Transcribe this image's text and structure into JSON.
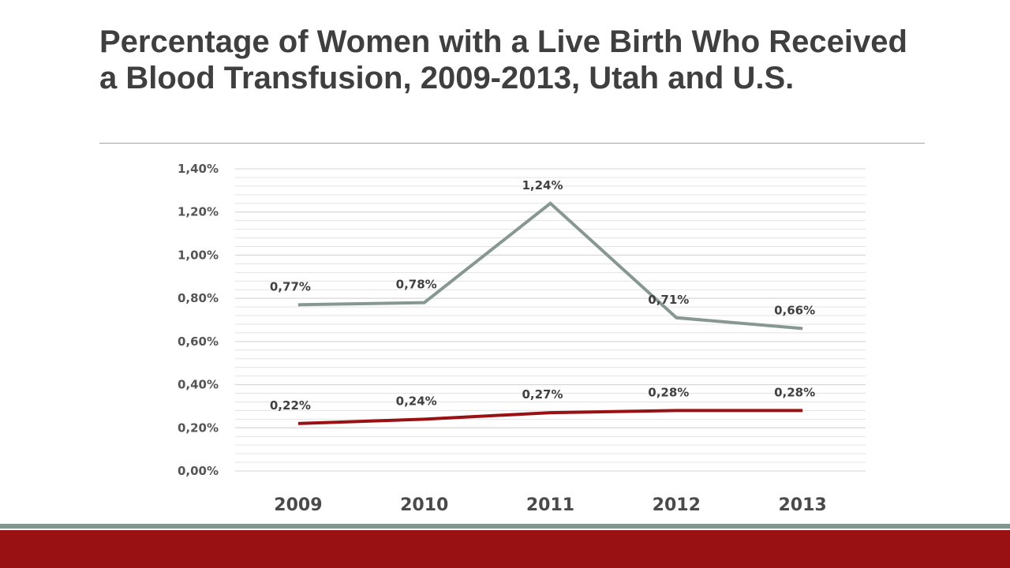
{
  "slide": {
    "title": "Percentage of Women with a Live Birth Who Received a Blood Transfusion, 2009-2013, Utah and U.S."
  },
  "colors": {
    "title": "#3f3f3f",
    "footer_stripe": "#7f958e",
    "footer_band": "#9a1113",
    "gridline": "#e3e3e3"
  },
  "chart_data": {
    "type": "line",
    "title": "",
    "xlabel": "",
    "ylabel": "",
    "categories": [
      "2009",
      "2010",
      "2011",
      "2012",
      "2013"
    ],
    "ylim": [
      0,
      1.4
    ],
    "y_ticks": [
      0,
      0.2,
      0.4,
      0.6,
      0.8,
      1.0,
      1.2,
      1.4
    ],
    "y_tick_labels": [
      "0,00%",
      "0,20%",
      "0,40%",
      "0,60%",
      "0,80%",
      "1,00%",
      "1,20%",
      "1,40%"
    ],
    "grid": true,
    "legend": "none",
    "series": [
      {
        "color": "#879892",
        "values": [
          0.77,
          0.78,
          1.24,
          0.71,
          0.66
        ],
        "labels": [
          "0,77%",
          "0,78%",
          "1,24%",
          "0,71%",
          "0,66%"
        ]
      },
      {
        "color": "#9a1113",
        "values": [
          0.22,
          0.24,
          0.27,
          0.28,
          0.28
        ],
        "labels": [
          "0,22%",
          "0,24%",
          "0,27%",
          "0,28%",
          "0,28%"
        ]
      }
    ]
  }
}
